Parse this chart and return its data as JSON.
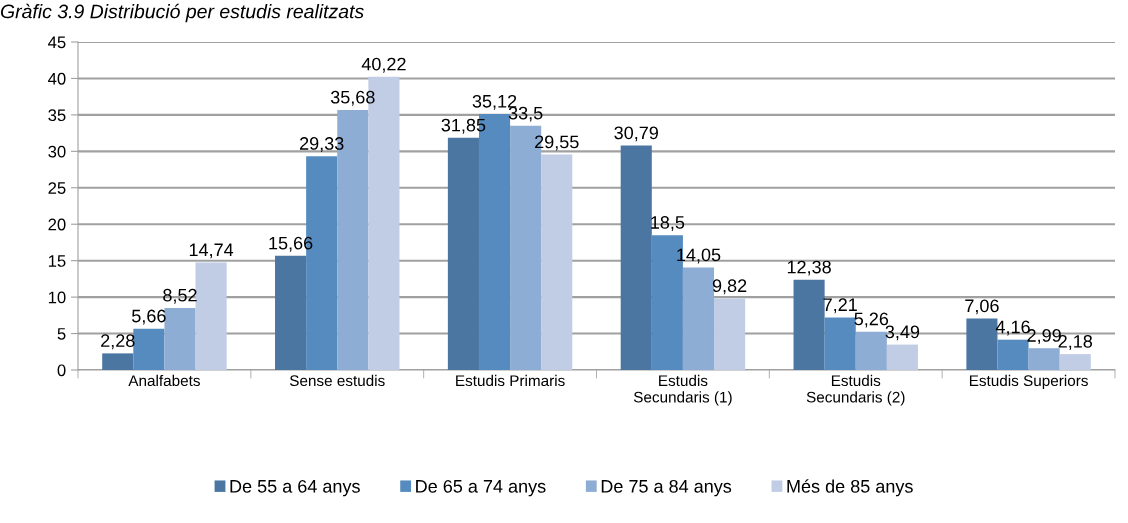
{
  "chart_data": {
    "type": "bar",
    "title": "Gràfic 3.9 Distribució per estudis realitzats",
    "categories": [
      "Analfabets",
      "Sense estudis",
      "Estudis Primaris",
      "Estudis\nSecundaris (1)",
      "Estudis\nSecundaris (2)",
      "Estudis Superiors"
    ],
    "series": [
      {
        "name": "De 55 a 64 anys",
        "color": "#4a76a1",
        "values": [
          2.28,
          15.66,
          31.85,
          30.79,
          12.38,
          7.06
        ],
        "value_labels": [
          "2,28",
          "15,66",
          "31,85",
          "30,79",
          "12,38",
          "7,06"
        ]
      },
      {
        "name": "De 65 a 74 anys",
        "color": "#558bbf",
        "values": [
          5.66,
          29.33,
          35.12,
          18.5,
          7.21,
          4.16
        ],
        "value_labels": [
          "5,66",
          "29,33",
          "35,12",
          "18,5",
          "7,21",
          "4,16"
        ]
      },
      {
        "name": "De 75 a 84 anys",
        "color": "#8eadd4",
        "values": [
          8.52,
          35.68,
          33.5,
          14.05,
          5.26,
          2.99
        ],
        "value_labels": [
          "8,52",
          "35,68",
          "33,5",
          "14,05",
          "5,26",
          "2,99"
        ]
      },
      {
        "name": "Més de 85 anys",
        "color": "#c0cde4",
        "values": [
          14.74,
          40.22,
          29.55,
          9.82,
          3.49,
          2.18
        ],
        "value_labels": [
          "14,74",
          "40,22",
          "29,55",
          "9,82",
          "3,49",
          "2,18"
        ]
      }
    ],
    "ylim": [
      0,
      45
    ],
    "yticks": [
      0,
      5,
      10,
      15,
      20,
      25,
      30,
      35,
      40,
      45
    ],
    "grid": "y",
    "legend": "bottom"
  }
}
